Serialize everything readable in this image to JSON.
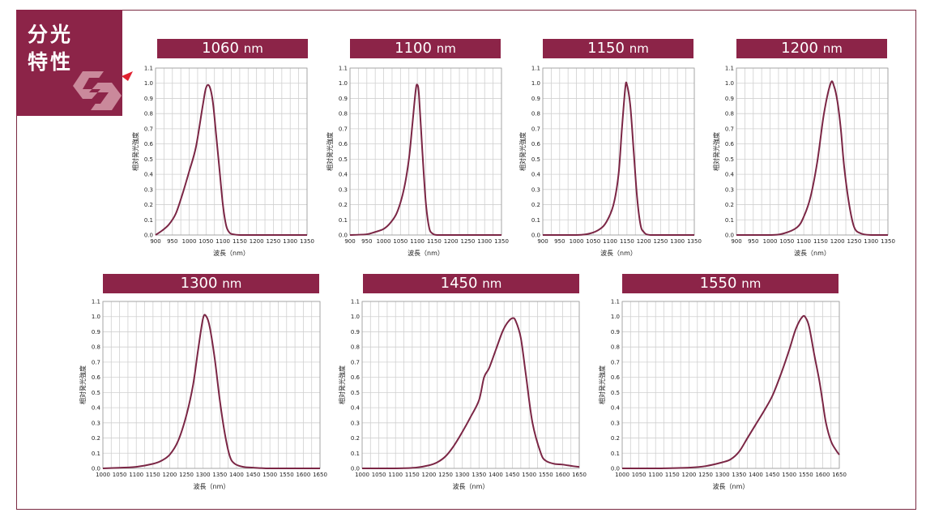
{
  "badge": {
    "title_line1": "分光",
    "title_line2": "特性"
  },
  "axis_labels": {
    "xlabel": "波長（nm）",
    "ylabel": "相対発光強度"
  },
  "colors": {
    "accent": "#8c2448",
    "curve": "#7b2645",
    "grid": "#d0d0d0"
  },
  "chart_data": [
    {
      "type": "line",
      "title": "1060",
      "unit": "nm",
      "xlim": [
        900,
        1350
      ],
      "ylim": [
        0,
        1.1
      ],
      "xticks": [
        900,
        950,
        1000,
        1050,
        1100,
        1150,
        1200,
        1250,
        1300,
        1350
      ],
      "yticks": [
        0.0,
        0.1,
        0.2,
        0.3,
        0.4,
        0.5,
        0.6,
        0.7,
        0.8,
        0.9,
        1.0,
        1.1
      ],
      "x": [
        900,
        920,
        940,
        960,
        980,
        1000,
        1020,
        1040,
        1050,
        1060,
        1070,
        1080,
        1090,
        1100,
        1110,
        1120,
        1130,
        1150,
        1200,
        1300,
        1350
      ],
      "y": [
        0,
        0.03,
        0.07,
        0.14,
        0.27,
        0.42,
        0.58,
        0.85,
        0.97,
        0.98,
        0.88,
        0.66,
        0.43,
        0.2,
        0.06,
        0.015,
        0.005,
        0,
        0,
        0,
        0
      ]
    },
    {
      "type": "line",
      "title": "1100",
      "unit": "nm",
      "xlim": [
        900,
        1350
      ],
      "ylim": [
        0,
        1.1
      ],
      "xticks": [
        900,
        950,
        1000,
        1050,
        1100,
        1150,
        1200,
        1250,
        1300,
        1350
      ],
      "yticks": [
        0.0,
        0.1,
        0.2,
        0.3,
        0.4,
        0.5,
        0.6,
        0.7,
        0.8,
        0.9,
        1.0,
        1.1
      ],
      "x": [
        900,
        950,
        975,
        1000,
        1020,
        1040,
        1060,
        1075,
        1085,
        1095,
        1100,
        1105,
        1115,
        1125,
        1135,
        1145,
        1160,
        1200,
        1300,
        1350
      ],
      "y": [
        0,
        0.005,
        0.02,
        0.04,
        0.08,
        0.15,
        0.3,
        0.5,
        0.72,
        0.95,
        0.99,
        0.92,
        0.55,
        0.22,
        0.05,
        0.01,
        0,
        0,
        0,
        0
      ]
    },
    {
      "type": "line",
      "title": "1150",
      "unit": "nm",
      "xlim": [
        900,
        1350
      ],
      "ylim": [
        0,
        1.1
      ],
      "xticks": [
        900,
        950,
        1000,
        1050,
        1100,
        1150,
        1200,
        1250,
        1300,
        1350
      ],
      "yticks": [
        0.0,
        0.1,
        0.2,
        0.3,
        0.4,
        0.5,
        0.6,
        0.7,
        0.8,
        0.9,
        1.0,
        1.1
      ],
      "x": [
        900,
        1000,
        1040,
        1070,
        1090,
        1110,
        1125,
        1135,
        1145,
        1150,
        1160,
        1170,
        1180,
        1190,
        1200,
        1220,
        1300,
        1350
      ],
      "y": [
        0,
        0,
        0.01,
        0.04,
        0.09,
        0.2,
        0.4,
        0.7,
        0.97,
        0.99,
        0.85,
        0.55,
        0.25,
        0.07,
        0.02,
        0,
        0,
        0
      ]
    },
    {
      "type": "line",
      "title": "1200",
      "unit": "nm",
      "xlim": [
        900,
        1350
      ],
      "ylim": [
        0,
        1.1
      ],
      "xticks": [
        900,
        950,
        1000,
        1050,
        1100,
        1150,
        1200,
        1250,
        1300,
        1350
      ],
      "yticks": [
        0.0,
        0.1,
        0.2,
        0.3,
        0.4,
        0.5,
        0.6,
        0.7,
        0.8,
        0.9,
        1.0,
        1.1
      ],
      "x": [
        900,
        1000,
        1040,
        1080,
        1100,
        1120,
        1140,
        1160,
        1180,
        1190,
        1200,
        1210,
        1220,
        1235,
        1250,
        1270,
        1300,
        1350
      ],
      "y": [
        0,
        0,
        0.01,
        0.05,
        0.12,
        0.25,
        0.48,
        0.8,
        1.0,
        0.98,
        0.88,
        0.7,
        0.45,
        0.2,
        0.05,
        0.01,
        0,
        0
      ]
    },
    {
      "type": "line",
      "title": "1300",
      "unit": "nm",
      "xlim": [
        1000,
        1650
      ],
      "ylim": [
        0,
        1.1
      ],
      "xticks": [
        1000,
        1050,
        1100,
        1150,
        1200,
        1250,
        1300,
        1350,
        1400,
        1450,
        1500,
        1550,
        1600,
        1650
      ],
      "yticks": [
        0.0,
        0.1,
        0.2,
        0.3,
        0.4,
        0.5,
        0.6,
        0.7,
        0.8,
        0.9,
        1.0,
        1.1
      ],
      "x": [
        1000,
        1050,
        1100,
        1150,
        1175,
        1200,
        1225,
        1250,
        1270,
        1285,
        1300,
        1310,
        1320,
        1335,
        1350,
        1365,
        1380,
        1395,
        1420,
        1450,
        1500,
        1650
      ],
      "y": [
        0,
        0.004,
        0.01,
        0.03,
        0.05,
        0.09,
        0.18,
        0.35,
        0.55,
        0.78,
        0.99,
        1.0,
        0.93,
        0.72,
        0.45,
        0.23,
        0.08,
        0.03,
        0.01,
        0.005,
        0,
        0
      ]
    },
    {
      "type": "line",
      "title": "1450",
      "unit": "nm",
      "xlim": [
        1000,
        1650
      ],
      "ylim": [
        0,
        1.1
      ],
      "xticks": [
        1000,
        1050,
        1100,
        1150,
        1200,
        1250,
        1300,
        1350,
        1400,
        1450,
        1500,
        1550,
        1600,
        1650
      ],
      "yticks": [
        0.0,
        0.1,
        0.2,
        0.3,
        0.4,
        0.5,
        0.6,
        0.7,
        0.8,
        0.9,
        1.0,
        1.1
      ],
      "x": [
        1000,
        1100,
        1160,
        1200,
        1225,
        1250,
        1275,
        1300,
        1325,
        1350,
        1365,
        1380,
        1400,
        1420,
        1435,
        1450,
        1460,
        1475,
        1490,
        1510,
        1535,
        1550,
        1575,
        1600,
        1630,
        1650
      ],
      "y": [
        0,
        0,
        0.005,
        0.02,
        0.04,
        0.08,
        0.15,
        0.24,
        0.34,
        0.45,
        0.6,
        0.66,
        0.78,
        0.9,
        0.96,
        0.99,
        0.97,
        0.86,
        0.62,
        0.3,
        0.1,
        0.05,
        0.03,
        0.025,
        0.015,
        0.01
      ]
    },
    {
      "type": "line",
      "title": "1550",
      "unit": "nm",
      "xlim": [
        1000,
        1650
      ],
      "ylim": [
        0,
        1.1
      ],
      "xticks": [
        1000,
        1050,
        1100,
        1150,
        1200,
        1250,
        1300,
        1350,
        1400,
        1450,
        1500,
        1550,
        1600,
        1650
      ],
      "yticks": [
        0.0,
        0.1,
        0.2,
        0.3,
        0.4,
        0.5,
        0.6,
        0.7,
        0.8,
        0.9,
        1.0,
        1.1
      ],
      "x": [
        1000,
        1100,
        1200,
        1250,
        1300,
        1325,
        1350,
        1375,
        1400,
        1425,
        1450,
        1475,
        1500,
        1520,
        1540,
        1550,
        1560,
        1575,
        1590,
        1600,
        1610,
        1625,
        1640,
        1650
      ],
      "y": [
        0,
        0,
        0.005,
        0.015,
        0.04,
        0.06,
        0.11,
        0.2,
        0.29,
        0.38,
        0.48,
        0.62,
        0.78,
        0.92,
        1.0,
        0.99,
        0.93,
        0.75,
        0.58,
        0.44,
        0.3,
        0.18,
        0.12,
        0.09
      ]
    }
  ]
}
